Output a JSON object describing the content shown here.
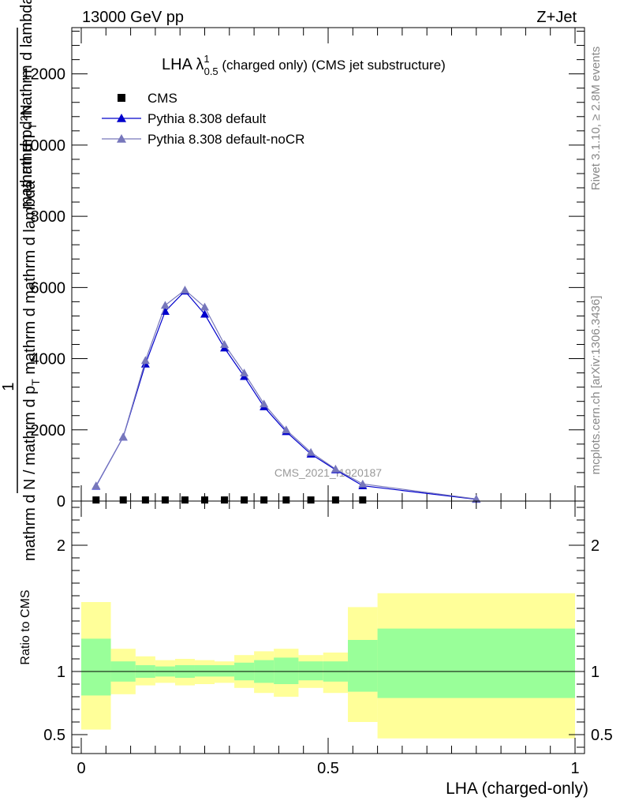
{
  "header": {
    "energy_label": "13000 GeV pp",
    "process_label": "Z+Jet",
    "side_top": "Rivet 3.1.10, ≥ 2.8M events",
    "side_bottom": "mcplots.cern.ch [arXiv:1306.3436]",
    "watermark": "CMS_2021_I1920187"
  },
  "title": {
    "main": "LHA λ",
    "sup": "1",
    "sub": "0.5",
    "rest": " (charged only) (CMS jet substructure)"
  },
  "ylabel": {
    "numerator_line1": "mathrm d²N",
    "numerator_line2": "mathrm d p",
    "numerator_sub": "T",
    "numerator_line3": " mathrm d lambda",
    "fraction_one": "1",
    "denominator": "mathrm d N / mathrm d p",
    "denominator_sub": "T",
    "denominator_rest": " mathrm d mathrm d lambda"
  },
  "ratio_ylabel": "Ratio to CMS",
  "xlabel": "LHA (charged-only)",
  "legend": [
    {
      "label": "CMS",
      "color": "#000000",
      "marker": "square"
    },
    {
      "label": "Pythia 8.308 default",
      "color": "#0000cc",
      "marker": "triangle"
    },
    {
      "label": "Pythia 8.308 default-noCR",
      "color": "#7777bb",
      "marker": "triangle"
    }
  ],
  "chart_data": {
    "type": "line",
    "xlim": [
      0,
      1
    ],
    "ylim": [
      0,
      13300
    ],
    "ratio_ylim": [
      0.35,
      2.35
    ],
    "x_ticks": [
      0,
      0.5,
      1
    ],
    "x_tick_labels": [
      "0",
      "0.5",
      "1"
    ],
    "y_ticks": [
      0,
      2000,
      4000,
      6000,
      8000,
      10000,
      12000
    ],
    "y_tick_labels": [
      "0",
      "2000",
      "4000",
      "6000",
      "8000",
      "10000",
      "12000"
    ],
    "ratio_ticks": [
      0.5,
      1,
      2
    ],
    "ratio_tick_labels": [
      "0.5",
      "1",
      "2"
    ],
    "x": [
      0.03,
      0.085,
      0.13,
      0.17,
      0.21,
      0.25,
      0.29,
      0.33,
      0.37,
      0.415,
      0.465,
      0.515,
      0.57,
      0.8
    ],
    "series": [
      {
        "name": "CMS",
        "color": "#000000",
        "values": [
          30,
          30,
          30,
          30,
          30,
          30,
          30,
          30,
          30,
          30,
          30,
          30,
          30,
          0
        ]
      },
      {
        "name": "Pythia 8.308 default",
        "color": "#0000cc",
        "values": [
          420,
          1800,
          3850,
          5330,
          5900,
          5250,
          4300,
          3500,
          2650,
          1950,
          1320,
          880,
          430,
          50
        ]
      },
      {
        "name": "Pythia 8.308 default-noCR",
        "color": "#7777bb",
        "values": [
          430,
          1800,
          3950,
          5500,
          5930,
          5450,
          4400,
          3600,
          2730,
          2000,
          1370,
          900,
          480,
          60
        ]
      }
    ],
    "ratio_bands": {
      "edges": [
        0,
        0.06,
        0.11,
        0.15,
        0.19,
        0.23,
        0.27,
        0.31,
        0.35,
        0.39,
        0.44,
        0.49,
        0.54,
        0.6,
        1.0
      ],
      "inner_low": [
        0.81,
        0.92,
        0.95,
        0.96,
        0.95,
        0.96,
        0.96,
        0.93,
        0.91,
        0.9,
        0.93,
        0.92,
        0.84,
        0.79
      ],
      "inner_high": [
        1.26,
        1.08,
        1.05,
        1.04,
        1.05,
        1.05,
        1.05,
        1.07,
        1.09,
        1.11,
        1.08,
        1.08,
        1.25,
        1.34
      ],
      "outer_low": [
        0.54,
        0.82,
        0.89,
        0.91,
        0.89,
        0.9,
        0.91,
        0.87,
        0.83,
        0.8,
        0.87,
        0.83,
        0.6,
        0.47
      ],
      "outer_high": [
        1.55,
        1.18,
        1.12,
        1.09,
        1.1,
        1.09,
        1.08,
        1.13,
        1.16,
        1.18,
        1.13,
        1.15,
        1.51,
        1.62
      ],
      "inner_color": "#99ff99",
      "outer_color": "#ffff99"
    },
    "ratio_reference": 1
  }
}
